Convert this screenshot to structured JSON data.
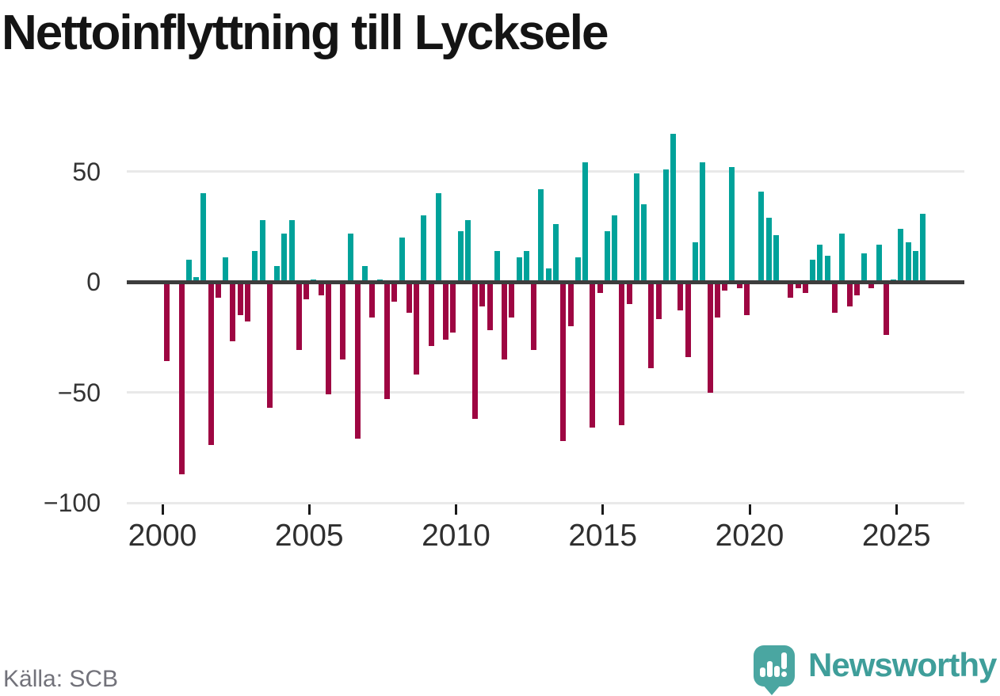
{
  "title": "Nettoinflyttning till Lycksele",
  "source": "Källa: SCB",
  "branding": {
    "logo_text": "Newsworthy",
    "icon": "newsworthy-speech-bubble-bar-chart-icon",
    "brand_teal": "#3f9e9a",
    "icon_teal": "#4aa6a1"
  },
  "colors": {
    "positive_bar": "#00a29a",
    "negative_bar": "#9e0642",
    "gridline": "#e9e9e9",
    "zero_line": "#3d3d3d",
    "axis_text": "#333333",
    "title_text": "#141414",
    "source_text": "#72727a",
    "background": "#ffffff"
  },
  "chart_data": {
    "type": "bar",
    "title": "Nettoinflyttning till Lycksele",
    "frequency": "quarterly",
    "start_year": 2000,
    "end_year": 2025,
    "xlabel": "",
    "ylabel": "",
    "ylim": [
      -100,
      70
    ],
    "grid": "horizontal",
    "legend": "none",
    "positive_color": "#00a29a",
    "negative_color": "#9e0642",
    "x_ticks": [
      {
        "label": "2000",
        "year": 2000
      },
      {
        "label": "2005",
        "year": 2005
      },
      {
        "label": "2010",
        "year": 2010
      },
      {
        "label": "2015",
        "year": 2015
      },
      {
        "label": "2020",
        "year": 2020
      },
      {
        "label": "2025",
        "year": 2025
      }
    ],
    "y_ticks": [
      {
        "label": "50",
        "value": 50
      },
      {
        "label": "0",
        "value": 0
      },
      {
        "label": "−50",
        "value": -50
      },
      {
        "label": "−100",
        "value": -100
      }
    ],
    "values": [
      -36,
      0,
      -87,
      10,
      2,
      40,
      -74,
      -7,
      11,
      -27,
      -15,
      -18,
      14,
      28,
      -57,
      7,
      22,
      28,
      -31,
      -8,
      1,
      -6,
      -51,
      0,
      -35,
      22,
      -71,
      7,
      -16,
      1,
      -53,
      -9,
      20,
      -14,
      -42,
      30,
      -29,
      40,
      -26,
      -23,
      23,
      28,
      -62,
      -11,
      -22,
      14,
      -35,
      -16,
      11,
      14,
      -31,
      42,
      6,
      26,
      -72,
      -20,
      11,
      54,
      -66,
      -5,
      23,
      30,
      -65,
      -10,
      49,
      35,
      -39,
      -17,
      51,
      67,
      -13,
      -34,
      18,
      54,
      -50,
      -16,
      -4,
      52,
      -3,
      -15,
      0,
      41,
      29,
      21,
      0,
      -7,
      -3,
      -5,
      10,
      17,
      12,
      -14,
      22,
      -11,
      -6,
      13,
      -3,
      17,
      -24,
      1,
      24,
      18,
      14,
      31
    ]
  }
}
